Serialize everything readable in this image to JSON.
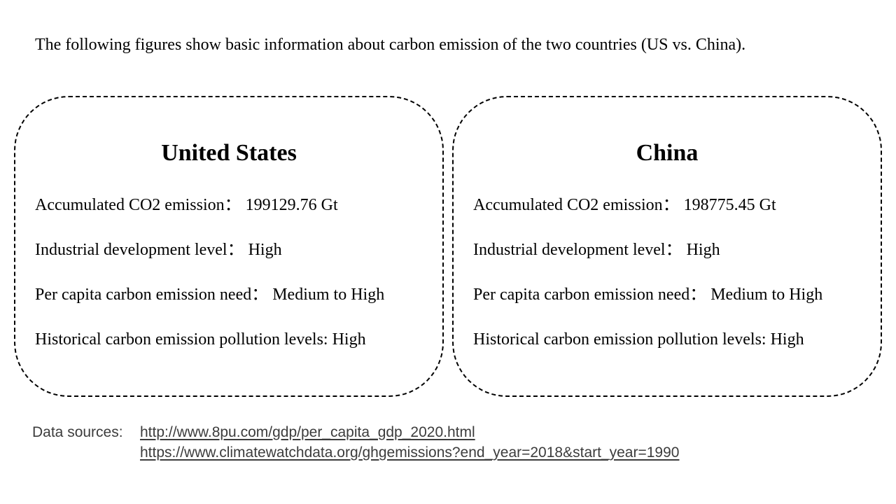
{
  "intro": "The following figures show basic information about carbon emission of the two countries (US vs. China).",
  "countries": [
    {
      "name": "United States",
      "lines": [
        "Accumulated CO2 emission： 199129.76 Gt",
        "Industrial development level： High",
        "Per capita carbon emission need： Medium to High",
        "Historical carbon emission pollution levels: High"
      ]
    },
    {
      "name": "China",
      "lines": [
        "Accumulated CO2 emission： 198775.45 Gt",
        "Industrial development level： High",
        "Per capita carbon emission need： Medium to High",
        "Historical carbon emission pollution levels: High"
      ]
    }
  ],
  "sources": {
    "label": "Data sources:",
    "links": [
      "http://www.8pu.com/gdp/per_capita_gdp_2020.html",
      "https://www.climatewatchdata.org/ghgemissions?end_year=2018&start_year=1990"
    ]
  }
}
